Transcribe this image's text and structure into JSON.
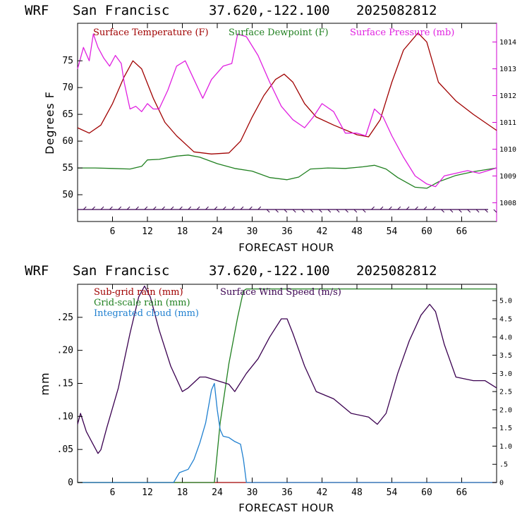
{
  "colors": {
    "temperature": "#a00000",
    "dewpoint": "#208020",
    "pressure": "#e020e0",
    "wind": "#3a0050",
    "subgrid_rain": "#a00000",
    "gridscale_rain": "#208020",
    "cloud": "#2080d0",
    "right_axis": "#d000d0"
  },
  "top_panel": {
    "header": {
      "model": "WRF",
      "station": "San Francisc",
      "coords": "37.620,-122.100",
      "run": "2025082812"
    },
    "legend": {
      "temperature": "Surface Temperature (F)",
      "dewpoint": "Surface Dewpoint (F)",
      "pressure": "Surface Pressure (mb)"
    },
    "ylabel": "Degrees F",
    "xlabel": "FORECAST HOUR"
  },
  "bottom_panel": {
    "header": {
      "model": "WRF",
      "station": "San Francisc",
      "coords": "37.620,-122.100",
      "run": "2025082812"
    },
    "legend": {
      "subgrid": "Sub-grid rain (mm)",
      "wind": "Surface Wind Speed (m/s)",
      "gridscale": "Grid-scale rain (mm)",
      "cloud": "Integrated cloud (mm)"
    },
    "ylabel": "mm",
    "xlabel": "FORECAST HOUR"
  },
  "chart_data": [
    {
      "type": "line",
      "title": "WRF San Francisc 37.620,-122.100 2025082812",
      "xlabel": "FORECAST HOUR",
      "ylabel": "Degrees F",
      "xlim": [
        0,
        72
      ],
      "ylim": [
        45,
        82
      ],
      "x_ticks": [
        "6",
        "12",
        "18",
        "24",
        "30",
        "36",
        "42",
        "48",
        "54",
        "60",
        "66"
      ],
      "y_ticks": [
        "50",
        "55",
        "60",
        "65",
        "70",
        "75"
      ],
      "y2lim": [
        1007.3,
        1014.7
      ],
      "y2_ticks": [
        "1008",
        "1009",
        "1010",
        "1011",
        "1012",
        "1013",
        "1014"
      ],
      "grid": false,
      "legend_position": "top",
      "series": [
        {
          "name": "Surface Temperature (F)",
          "axis": "left",
          "x": [
            0,
            2,
            4,
            6,
            8,
            9.5,
            11,
            13,
            15,
            17,
            20,
            23,
            26,
            28,
            30,
            32,
            34,
            35.5,
            37,
            39,
            41,
            44,
            48,
            50,
            52,
            54,
            56,
            58.5,
            60,
            62,
            65,
            68,
            72
          ],
          "y": [
            62.5,
            61.5,
            63,
            67,
            72,
            75,
            73.5,
            68,
            63.5,
            61,
            58,
            57.6,
            57.8,
            60,
            64.5,
            68.5,
            71.5,
            72.5,
            71,
            67,
            64.5,
            63,
            61.2,
            60.8,
            64,
            71,
            77,
            80.2,
            78.5,
            71,
            67.5,
            65,
            62
          ]
        },
        {
          "name": "Surface Dewpoint (F)",
          "axis": "left",
          "x": [
            0,
            3,
            6,
            9,
            11,
            12,
            14,
            17,
            19,
            21,
            24,
            27,
            30,
            33,
            36,
            38,
            40,
            43,
            46,
            49,
            51,
            53,
            55,
            58,
            60,
            62,
            65,
            68,
            72
          ],
          "y": [
            55,
            55,
            54.9,
            54.8,
            55.3,
            56.5,
            56.6,
            57.2,
            57.4,
            57,
            55.8,
            54.9,
            54.4,
            53.2,
            52.8,
            53.3,
            54.8,
            55,
            54.9,
            55.2,
            55.5,
            54.8,
            53.2,
            51.4,
            51.2,
            52.4,
            53.6,
            54.3,
            55
          ]
        },
        {
          "name": "Surface Pressure (mb)",
          "axis": "right",
          "x": [
            0,
            1,
            2,
            2.7,
            3.5,
            4.5,
            5.5,
            6.5,
            7.5,
            8,
            9,
            10,
            11,
            12,
            13,
            14,
            15.5,
            17,
            18.5,
            20,
            21.5,
            23,
            25,
            26.5,
            27.5,
            29,
            31,
            33,
            35,
            37,
            39,
            40.5,
            42,
            44,
            46,
            48,
            49.5,
            51,
            52.5,
            54,
            56,
            58,
            60,
            61.5,
            63,
            65,
            67,
            69,
            72
          ],
          "y": [
            1013,
            1013.8,
            1013.3,
            1014.3,
            1013.8,
            1013.4,
            1013.1,
            1013.5,
            1013.2,
            1012.5,
            1011.5,
            1011.6,
            1011.4,
            1011.7,
            1011.5,
            1011.5,
            1012.2,
            1013.1,
            1013.3,
            1012.6,
            1011.9,
            1012.6,
            1013.1,
            1013.2,
            1014.3,
            1014.2,
            1013.5,
            1012.5,
            1011.6,
            1011.1,
            1010.8,
            1011.2,
            1011.7,
            1011.4,
            1010.6,
            1010.6,
            1010.5,
            1011.5,
            1011.2,
            1010.5,
            1009.7,
            1009,
            1008.7,
            1008.6,
            1009,
            1009.1,
            1009.2,
            1009.1,
            1009.3
          ]
        }
      ]
    },
    {
      "type": "line",
      "title": "WRF San Francisc 37.620,-122.100 2025082812",
      "xlabel": "FORECAST HOUR",
      "ylabel": "mm",
      "xlim": [
        0,
        72
      ],
      "ylim": [
        0,
        0.3
      ],
      "x_ticks": [
        "6",
        "12",
        "18",
        "24",
        "30",
        "36",
        "42",
        "48",
        "54",
        "60",
        "66"
      ],
      "y_ticks": [
        "0",
        ".05",
        ".10",
        ".15",
        ".20",
        ".25"
      ],
      "y2lim": [
        0,
        5.45
      ],
      "y2_ticks": [
        "0",
        ".5",
        "1.0",
        "1.5",
        "2.0",
        "2.5",
        "3.0",
        "3.5",
        "4.0",
        "4.5",
        "5.0"
      ],
      "grid": false,
      "legend_position": "top-left",
      "series": [
        {
          "name": "Sub-grid rain (mm)",
          "axis": "left",
          "x": [
            0,
            72
          ],
          "y": [
            0,
            0
          ]
        },
        {
          "name": "Grid-scale rain (mm)",
          "axis": "left",
          "x": [
            0,
            23.5,
            24.5,
            26,
            27.5,
            28.5,
            29,
            72
          ],
          "y": [
            0,
            0,
            0.09,
            0.18,
            0.25,
            0.29,
            0.293,
            0.293
          ]
        },
        {
          "name": "Integrated cloud (mm)",
          "axis": "left",
          "x": [
            0,
            16.5,
            17.5,
            19,
            20,
            21,
            22,
            23,
            23.5,
            24,
            24.5,
            25,
            26,
            27,
            28,
            28.5,
            29,
            72
          ],
          "y": [
            0,
            0,
            0.015,
            0.02,
            0.035,
            0.06,
            0.09,
            0.14,
            0.15,
            0.11,
            0.08,
            0.07,
            0.068,
            0.062,
            0.058,
            0.035,
            0,
            0
          ]
        },
        {
          "name": "Surface Wind Speed (m/s)",
          "axis": "right",
          "x": [
            0,
            0.5,
            1.5,
            2.5,
            3.5,
            4,
            5,
            7,
            9,
            10.5,
            11.5,
            12.5,
            14,
            16,
            18,
            19,
            21,
            22,
            24,
            26,
            27,
            29,
            31,
            33,
            35,
            36,
            37,
            39,
            41,
            44,
            47,
            50,
            51.5,
            53,
            55,
            57,
            59,
            60.5,
            61.5,
            63,
            65,
            68,
            70,
            72
          ],
          "y": [
            1.6,
            1.9,
            1.4,
            1.1,
            0.8,
            0.9,
            1.5,
            2.6,
            4.1,
            5.1,
            5.4,
            5.1,
            4.2,
            3.2,
            2.5,
            2.6,
            2.9,
            2.9,
            2.8,
            2.7,
            2.5,
            3.0,
            3.4,
            4.0,
            4.5,
            4.5,
            4.1,
            3.2,
            2.5,
            2.3,
            1.9,
            1.8,
            1.6,
            1.9,
            3.0,
            3.9,
            4.6,
            4.9,
            4.7,
            3.8,
            2.9,
            2.8,
            2.8,
            2.6
          ]
        }
      ]
    }
  ]
}
